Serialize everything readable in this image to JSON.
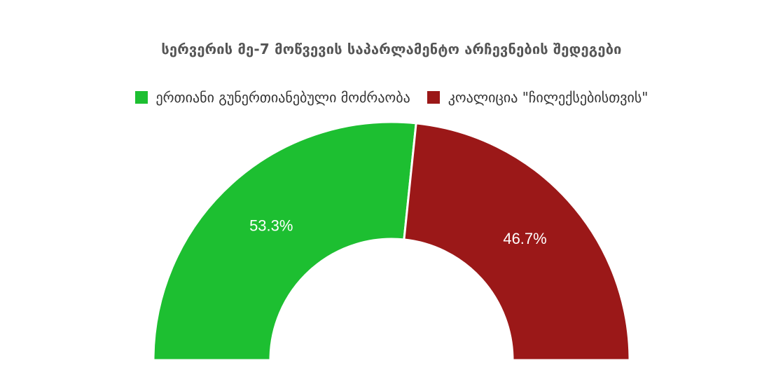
{
  "chart_data": {
    "type": "pie",
    "subtype": "semi-donut",
    "title": "სერვერის მე-7 მოწვევის საპარლამენტო არჩევნების შედეგები",
    "series": [
      {
        "name": "ერთიანი გუნერთიანებული მოძრაობა",
        "value": 53.3,
        "label": "53.3%",
        "color": "#1dbf31"
      },
      {
        "name": "კოალიცია \"ჩილექსებისთვის\"",
        "value": 46.7,
        "label": "46.7%",
        "color": "#9b1818"
      }
    ],
    "legend_position": "top-center"
  }
}
